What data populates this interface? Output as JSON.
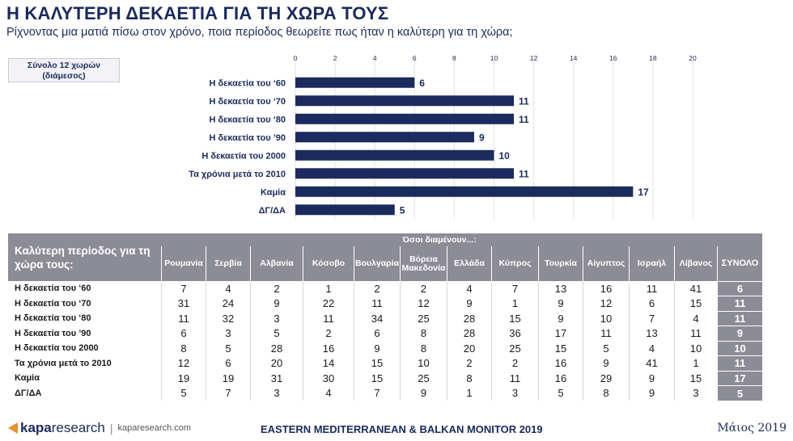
{
  "header": {
    "title": "Η ΚΑΛΥΤΕΡΗ ΔΕΚΑΕΤΙΑ ΓΙΑ ΤΗ ΧΩΡΑ ΤΟΥΣ",
    "subtitle": "Ρίχνοντας μια ματιά πίσω στον χρόνο, ποια περίοδος θεωρείτε πως ήταν η καλύτερη για τη χώρα;"
  },
  "sample_note": {
    "line1": "Σύνολο 12 χωρών",
    "line2": "(διάμεσος)"
  },
  "colors": {
    "bar": "#1b2b5e",
    "header_gray": "#8c8c96",
    "text_dark": "#1a2a5c"
  },
  "chart_data": {
    "type": "bar",
    "orientation": "horizontal",
    "categories": [
      "Η δεκαετία του ‘60",
      "Η δεκαετία του ‘70",
      "Η δεκαετία του ‘80",
      "Η δεκαετία του ’90",
      "Η δεκαετία του 2000",
      "Τα χρόνια μετά το 2010",
      "Καμία",
      "ΔΓ/ΔΑ"
    ],
    "values": [
      6,
      11,
      11,
      9,
      10,
      11,
      17,
      5
    ],
    "xlim": [
      0,
      20
    ],
    "ticks": [
      0,
      2,
      4,
      6,
      8,
      10,
      12,
      14,
      16,
      18,
      20
    ],
    "tick_position": "top",
    "grid": true
  },
  "table": {
    "header_label": "Καλύτερη περίοδος για τη χώρα τους:",
    "group_label": "Όσοι διαμένουν...:",
    "columns": [
      "Ρουμανία",
      "Σερβία",
      "Αλβανία",
      "Κόσοβο",
      "Βουλγαρία",
      "Βόρεια Μακεδονία",
      "Ελλάδα",
      "Κύπρος",
      "Τουρκία",
      "Αίγυπτος",
      "Ισραήλ",
      "Λίβανος"
    ],
    "total_label": "ΣΥΝΟΛΟ",
    "rows": [
      {
        "label": "Η δεκαετία του ‘60",
        "values": [
          "7",
          "4",
          "2",
          "1",
          "2",
          "2",
          "4",
          "7",
          "13",
          "16",
          "11",
          "41"
        ],
        "total": "6"
      },
      {
        "label": "Η δεκαετία του ‘70",
        "values": [
          "31",
          "24",
          "9",
          "22",
          "11",
          "12",
          "9",
          "1",
          "9",
          "12",
          "6",
          "15"
        ],
        "total": "11"
      },
      {
        "label": "Η δεκαετία του ‘80",
        "values": [
          "11",
          "32",
          "3",
          "11",
          "34",
          "25",
          "28",
          "15",
          "9",
          "10",
          "7",
          "4"
        ],
        "total": "11"
      },
      {
        "label": "Η δεκαετία του ’90",
        "values": [
          "6",
          "3",
          "5",
          "2",
          "6",
          "8",
          "28",
          "36",
          "17",
          "11",
          "13",
          "11"
        ],
        "total": "9"
      },
      {
        "label": "Η δεκαετία του 2000",
        "values": [
          "8",
          "5",
          "28",
          "16",
          "9",
          "8",
          "20",
          "25",
          "15",
          "5",
          "4",
          "10"
        ],
        "total": "10"
      },
      {
        "label": "Τα χρόνια μετά το 2010",
        "values": [
          "12",
          "6",
          "20",
          "14",
          "15",
          "10",
          "2",
          "2",
          "16",
          "9",
          "41",
          "1"
        ],
        "total": "11"
      },
      {
        "label": "Καμία",
        "values": [
          "19",
          "19",
          "31",
          "30",
          "15",
          "25",
          "8",
          "11",
          "16",
          "29",
          "9",
          "15"
        ],
        "total": "17"
      },
      {
        "label": "ΔΓ/ΔΑ",
        "values": [
          "5",
          "7",
          "3",
          "4",
          "7",
          "9",
          "1",
          "3",
          "5",
          "8",
          "9",
          "3"
        ],
        "total": "5"
      }
    ]
  },
  "footer": {
    "logo_kapa": "kapa",
    "logo_research": "research",
    "separator": "|",
    "url": "kaparesearch.com",
    "center": "EASTERN MEDITERRANEAN & BALKAN MONITOR 2019",
    "date": "Μάιος 2019"
  }
}
